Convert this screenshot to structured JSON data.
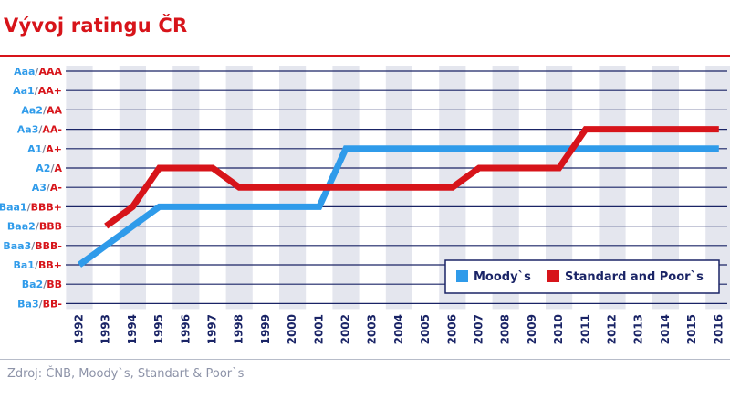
{
  "header": {
    "title": "Vývoj ratingu ČR"
  },
  "footer": {
    "source": "Zdroj: ČNB, Moody`s, Standart & Poor`s"
  },
  "colors": {
    "moodys": "#2f9bea",
    "sp": "#d7141a",
    "grid": "#1a2466",
    "band": "#e4e6ee",
    "moodys_label": "#2f9bea",
    "sp_label": "#d7141a",
    "axis_text": "#1a2466"
  },
  "chart_data": {
    "type": "line",
    "title": "Vývoj ratingu ČR",
    "xlabel": "",
    "ylabel": "",
    "categories": [
      "1992",
      "1993",
      "1994",
      "1995",
      "1996",
      "1997",
      "1998",
      "1999",
      "2000",
      "2001",
      "2002",
      "2003",
      "2004",
      "2005",
      "2006",
      "2007",
      "2008",
      "2009",
      "2010",
      "2011",
      "2012",
      "2013",
      "2014",
      "2015",
      "2016"
    ],
    "y_labels": [
      {
        "moodys": "Aaa",
        "sp": "AAA"
      },
      {
        "moodys": "Aa1",
        "sp": "AA+"
      },
      {
        "moodys": "Aa2",
        "sp": "AA"
      },
      {
        "moodys": "Aa3",
        "sp": "AA-"
      },
      {
        "moodys": "A1",
        "sp": "A+"
      },
      {
        "moodys": "A2",
        "sp": "A"
      },
      {
        "moodys": "A3",
        "sp": "A-"
      },
      {
        "moodys": "Baa1",
        "sp": "BBB+"
      },
      {
        "moodys": "Baa2",
        "sp": "BBB"
      },
      {
        "moodys": "Baa3",
        "sp": "BBB-"
      },
      {
        "moodys": "Ba1",
        "sp": "BB+"
      },
      {
        "moodys": "Ba2",
        "sp": "BB"
      },
      {
        "moodys": "Ba3",
        "sp": "BB-"
      }
    ],
    "series": [
      {
        "name": "Moody`s",
        "points": [
          {
            "x": "1992",
            "y": "Ba1"
          },
          {
            "x": "1995",
            "y": "Baa1"
          },
          {
            "x": "2001",
            "y": "Baa1"
          },
          {
            "x": "2002",
            "y": "A1"
          },
          {
            "x": "2016",
            "y": "A1"
          }
        ]
      },
      {
        "name": "Standard and Poor`s",
        "points": [
          {
            "x": "1993",
            "y": "BBB"
          },
          {
            "x": "1994",
            "y": "BBB+"
          },
          {
            "x": "1995",
            "y": "A"
          },
          {
            "x": "1997",
            "y": "A"
          },
          {
            "x": "1998",
            "y": "A-"
          },
          {
            "x": "2006",
            "y": "A-"
          },
          {
            "x": "2007",
            "y": "A"
          },
          {
            "x": "2010",
            "y": "A"
          },
          {
            "x": "2011",
            "y": "AA-"
          },
          {
            "x": "2016",
            "y": "AA-"
          }
        ]
      }
    ],
    "legend": "bottom-right",
    "grid": true
  }
}
